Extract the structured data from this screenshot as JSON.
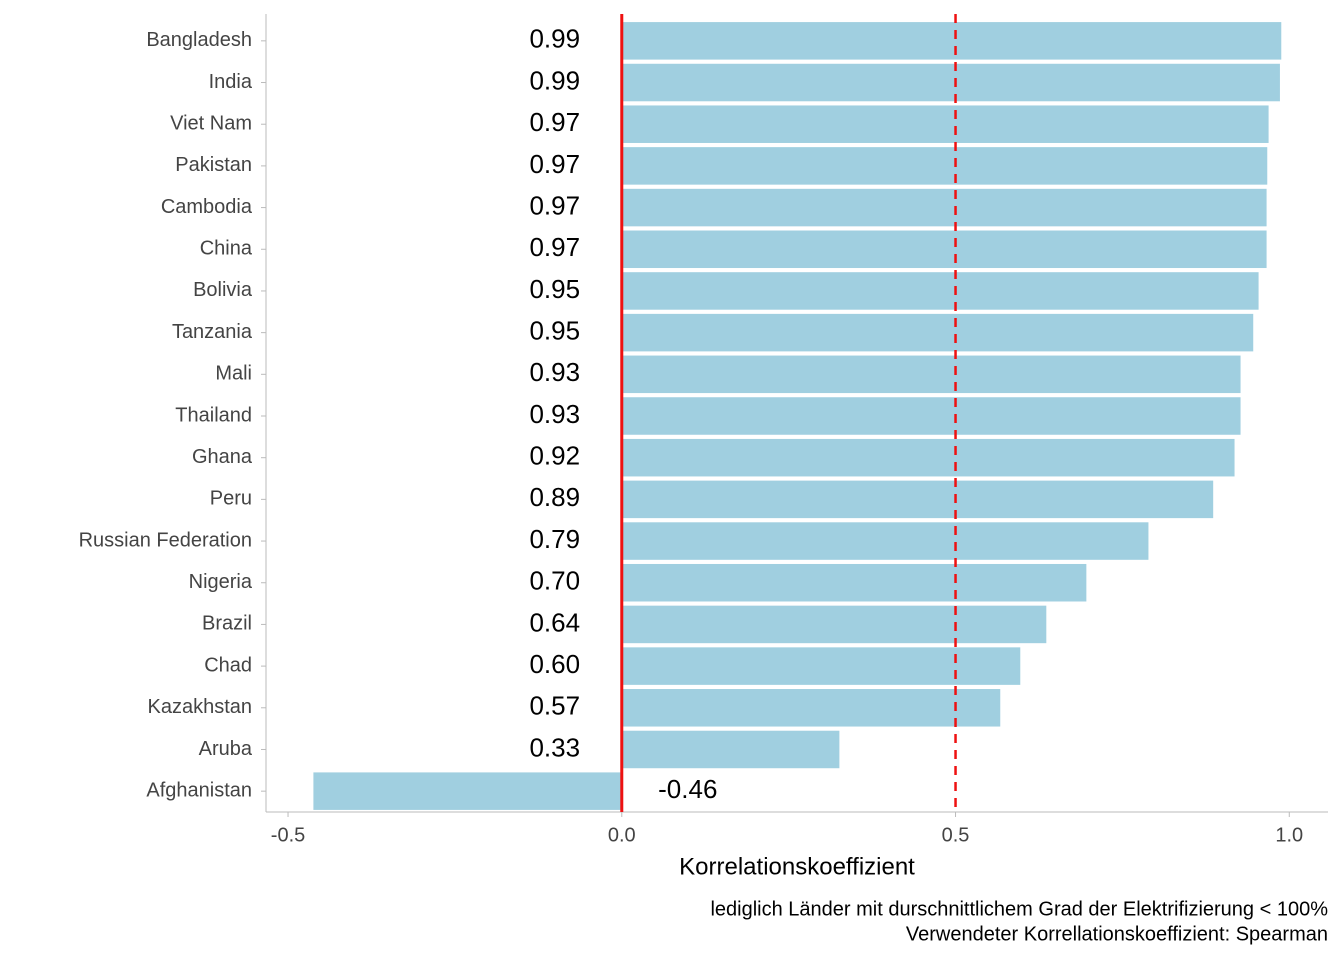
{
  "chart_data": {
    "type": "barh",
    "categories": [
      "Bangladesh",
      "India",
      "Viet Nam",
      "Pakistan",
      "Cambodia",
      "China",
      "Bolivia",
      "Tanzania",
      "Mali",
      "Thailand",
      "Ghana",
      "Peru",
      "Russian Federation",
      "Nigeria",
      "Brazil",
      "Chad",
      "Kazakhstan",
      "Aruba",
      "Afghanistan"
    ],
    "values": [
      0.988,
      0.986,
      0.969,
      0.967,
      0.966,
      0.966,
      0.954,
      0.946,
      0.927,
      0.927,
      0.918,
      0.886,
      0.789,
      0.696,
      0.636,
      0.597,
      0.567,
      0.326,
      -0.462
    ],
    "value_labels": [
      "0.99",
      "0.99",
      "0.97",
      "0.97",
      "0.97",
      "0.97",
      "0.95",
      "0.95",
      "0.93",
      "0.93",
      "0.92",
      "0.89",
      "0.79",
      "0.70",
      "0.64",
      "0.60",
      "0.57",
      "0.33",
      "-0.46"
    ],
    "color": "#a0cfe0",
    "xlim": [
      -0.533,
      1.058
    ],
    "xticks": [
      {
        "value": -0.5,
        "label": "-0.5"
      },
      {
        "value": 0,
        "label": "0.0"
      },
      {
        "value": 0.5,
        "label": "0.5"
      },
      {
        "value": 1,
        "label": "1.0"
      }
    ],
    "xlabel": "Korrelationskoeffizient",
    "reference_lines": [
      {
        "value": 0,
        "style": "solid",
        "color": "#ee1111"
      },
      {
        "value": 0.5,
        "style": "dashed",
        "color": "#ee1111"
      }
    ],
    "caption": [
      "lediglich Länder mit durschnittlichem Grad der Elektrifizierung < 100%",
      "Verwendeter Korrellationskoeffizient: Spearman"
    ],
    "grid": false
  }
}
